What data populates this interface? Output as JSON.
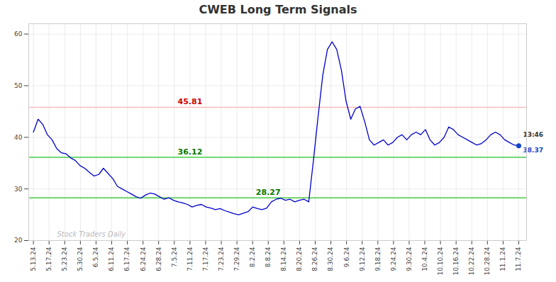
{
  "chart_data": {
    "type": "line",
    "title": "CWEB Long Term Signals",
    "title_color": "#333333",
    "color": "#0000cc",
    "grid": true,
    "xlim": [
      -0.3,
      31.5
    ],
    "xticks": [
      {
        "value": 0,
        "label": "5.13.24"
      },
      {
        "value": 1,
        "label": "5.17.24"
      },
      {
        "value": 2,
        "label": "5.23.24"
      },
      {
        "value": 3,
        "label": "5.30.24"
      },
      {
        "value": 4,
        "label": "6.5.24"
      },
      {
        "value": 5,
        "label": "6.11.24"
      },
      {
        "value": 6,
        "label": "6.17.24"
      },
      {
        "value": 7,
        "label": "6.24.24"
      },
      {
        "value": 8,
        "label": "6.28.24"
      },
      {
        "value": 9,
        "label": "7.5.24"
      },
      {
        "value": 10,
        "label": "7.11.24"
      },
      {
        "value": 11,
        "label": "7.17.24"
      },
      {
        "value": 12,
        "label": "7.23.24"
      },
      {
        "value": 13,
        "label": "7.29.24"
      },
      {
        "value": 14,
        "label": "8.2.24"
      },
      {
        "value": 15,
        "label": "8.8.24"
      },
      {
        "value": 16,
        "label": "8.14.24"
      },
      {
        "value": 17,
        "label": "8.20.24"
      },
      {
        "value": 18,
        "label": "8.26.24"
      },
      {
        "value": 19,
        "label": "8.30.24"
      },
      {
        "value": 20,
        "label": "9.6.24"
      },
      {
        "value": 21,
        "label": "9.12.24"
      },
      {
        "value": 22,
        "label": "9.18.24"
      },
      {
        "value": 23,
        "label": "9.24.24"
      },
      {
        "value": 24,
        "label": "9.30.24"
      },
      {
        "value": 25,
        "label": "10.4.24"
      },
      {
        "value": 26,
        "label": "10.10.24"
      },
      {
        "value": 27,
        "label": "10.16.24"
      },
      {
        "value": 28,
        "label": "10.22.24"
      },
      {
        "value": 29,
        "label": "10.28.24"
      },
      {
        "value": 30,
        "label": "11.1.24"
      },
      {
        "value": 31,
        "label": "11.7.24"
      }
    ],
    "ylim": [
      20,
      62
    ],
    "yticks": [
      20,
      30,
      40,
      50,
      60
    ],
    "x": [
      0,
      0.2981,
      0.5962,
      0.8942,
      1.1923,
      1.4904,
      1.7885,
      2.0865,
      2.3846,
      2.6827,
      2.9808,
      3.2788,
      3.5769,
      3.875,
      4.1731,
      4.4712,
      4.7692,
      5.0673,
      5.3654,
      5.6635,
      5.9615,
      6.2596,
      6.5577,
      6.8558,
      7.1538,
      7.4519,
      7.75,
      8.0481,
      8.3462,
      8.6442,
      8.9423,
      9.2404,
      9.5385,
      9.8365,
      10.1346,
      10.4327,
      10.7308,
      11.0288,
      11.3269,
      11.625,
      11.9231,
      12.2212,
      12.5192,
      12.8173,
      13.1154,
      13.4135,
      13.7115,
      14.0096,
      14.3077,
      14.6058,
      14.9038,
      15.2019,
      15.5,
      15.7981,
      16.0962,
      16.3942,
      16.6923,
      16.9904,
      17.2885,
      17.5865,
      17.8846,
      18.1827,
      18.4808,
      18.7788,
      19.0769,
      19.375,
      19.6731,
      19.9712,
      20.2692,
      20.5673,
      20.8654,
      21.1635,
      21.4615,
      21.7596,
      22.0577,
      22.3558,
      22.6538,
      22.9519,
      23.25,
      23.5481,
      23.8462,
      24.1442,
      24.4423,
      24.7404,
      25.0385,
      25.3365,
      25.6346,
      25.9327,
      26.2308,
      26.5288,
      26.8269,
      27.125,
      27.4231,
      27.7212,
      28.0192,
      28.3173,
      28.6154,
      28.9135,
      29.2115,
      29.5096,
      29.8077,
      30.1058,
      30.4038,
      30.7019,
      31
    ],
    "values": [
      41.0,
      43.5,
      42.5,
      40.5,
      39.5,
      37.8,
      37.0,
      36.8,
      36.0,
      35.5,
      34.5,
      34.0,
      33.2,
      32.5,
      32.8,
      34.0,
      33.0,
      32.0,
      30.5,
      30.0,
      29.5,
      29.0,
      28.5,
      28.2,
      28.8,
      29.2,
      29.0,
      28.5,
      28.0,
      28.3,
      27.8,
      27.5,
      27.3,
      27.0,
      26.5,
      26.8,
      27.0,
      26.5,
      26.3,
      26.0,
      26.2,
      25.8,
      25.5,
      25.2,
      25.0,
      25.3,
      25.6,
      26.5,
      26.2,
      26.0,
      26.3,
      27.5,
      28.0,
      28.2,
      27.8,
      28.0,
      27.5,
      27.8,
      28.0,
      27.5,
      35.5,
      44.0,
      52.0,
      57.0,
      58.5,
      57.0,
      53.0,
      47.0,
      43.5,
      45.5,
      46.0,
      43.0,
      39.5,
      38.5,
      39.0,
      39.5,
      38.5,
      39.0,
      40.0,
      40.5,
      39.5,
      40.5,
      41.0,
      40.5,
      41.5,
      39.5,
      38.5,
      39.0,
      40.0,
      42.0,
      41.5,
      40.5,
      40.0,
      39.5,
      39.0,
      38.5,
      38.8,
      39.5,
      40.5,
      41.0,
      40.5,
      39.5,
      39.0,
      38.5,
      38.37
    ],
    "hlines": [
      {
        "value": 45.81,
        "color": "#ffbbbb",
        "label": "45.81",
        "label_color": "#cc0000"
      },
      {
        "value": 36.12,
        "color": "#44cc44",
        "label": "36.12",
        "label_color": "#007700"
      },
      {
        "value": 28.27,
        "color": "#44cc44",
        "label": "28.27",
        "label_color": "#007700"
      }
    ],
    "end_marker": {
      "color": "#1144cc",
      "time_label": "13:46",
      "value_label": "38.37"
    },
    "watermark": {
      "text": "Stock Traders Daily",
      "color": "#bbbbbb"
    }
  }
}
